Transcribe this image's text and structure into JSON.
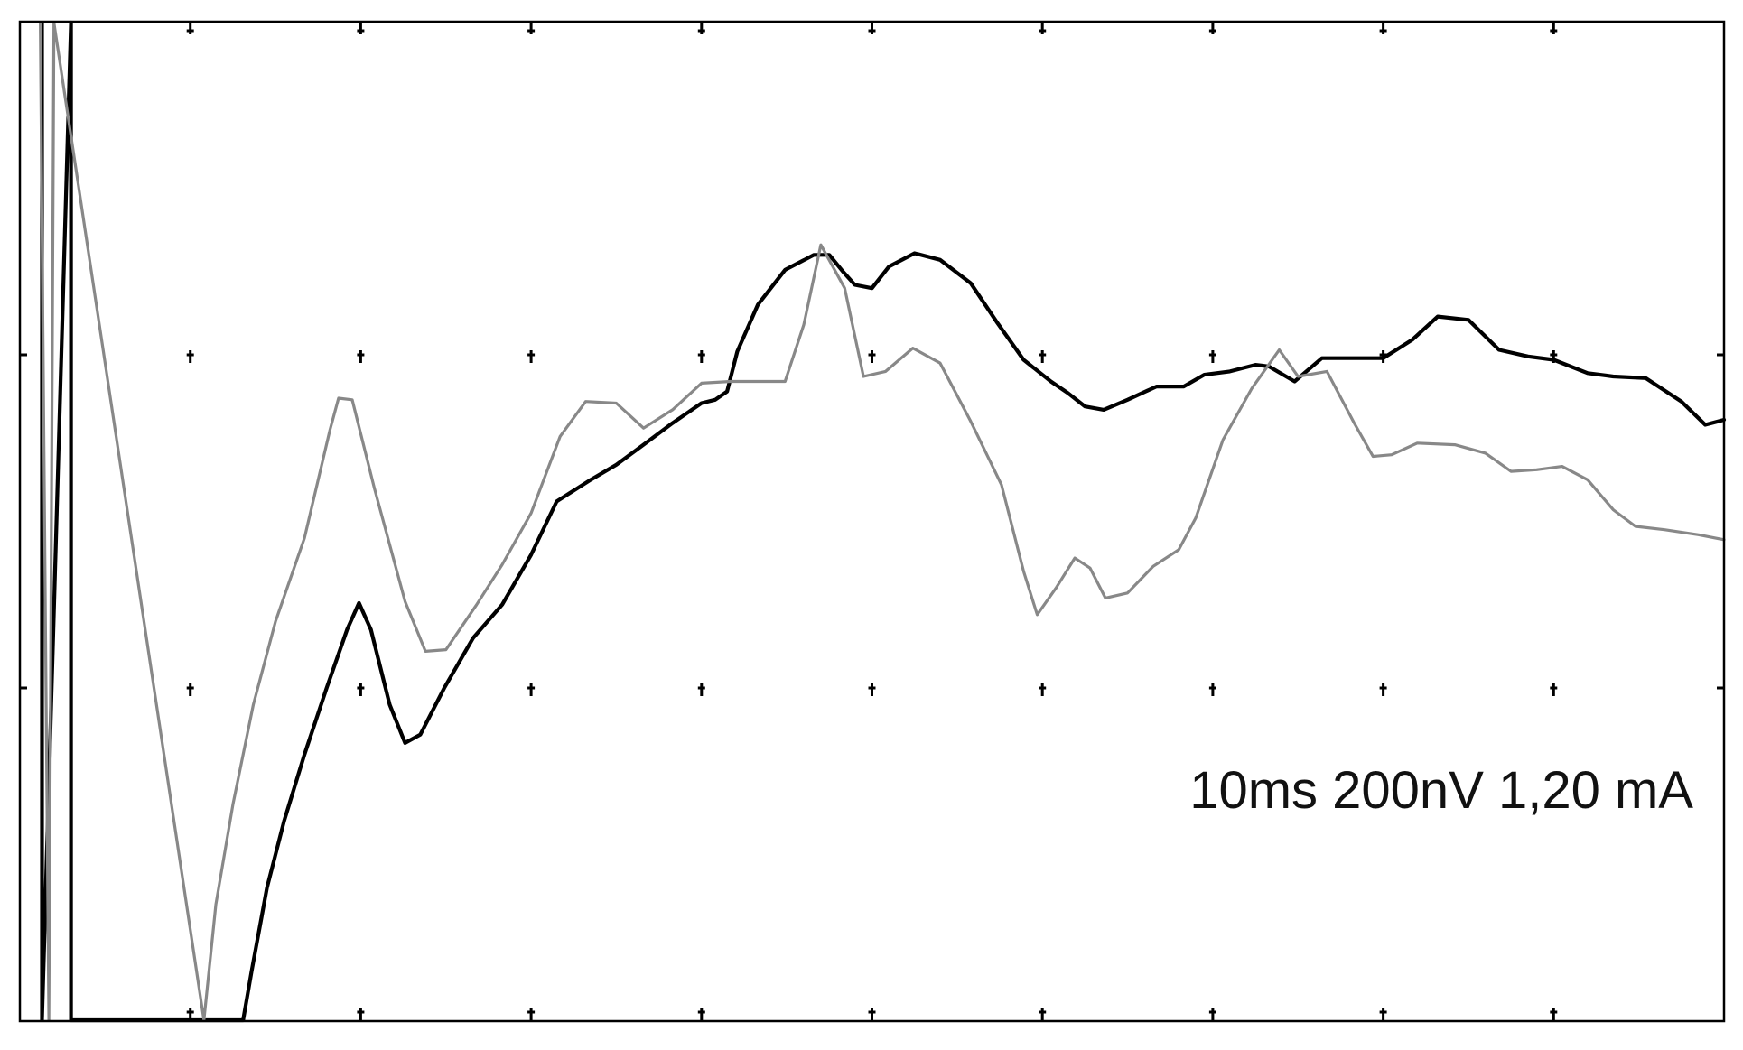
{
  "chart_data": {
    "type": "line",
    "title": "",
    "xlabel": "",
    "ylabel": "",
    "annotation": "10ms 200nV 1,20 mA",
    "grid": "dot-markers",
    "divisions": {
      "x": 10,
      "y": 3
    },
    "xlim": [
      0,
      100
    ],
    "ylim": [
      -300,
      300
    ],
    "colors": {
      "black_trace": "#000000",
      "gray_trace": "#888888",
      "frame": "#000000"
    },
    "series": [
      {
        "color": "#000000",
        "points": [
          [
            1.3,
            300
          ],
          [
            1.3,
            -300
          ],
          [
            3.0,
            300
          ],
          [
            3.0,
            -300
          ],
          [
            13.1,
            -300
          ],
          [
            13.6,
            -270
          ],
          [
            14.5,
            -220
          ],
          [
            15.5,
            -180
          ],
          [
            16.7,
            -140
          ],
          [
            18.0,
            -100
          ],
          [
            19.2,
            -65
          ],
          [
            19.9,
            -49
          ],
          [
            20.6,
            -65
          ],
          [
            21.7,
            -110
          ],
          [
            22.6,
            -133
          ],
          [
            23.5,
            -128
          ],
          [
            24.9,
            -100
          ],
          [
            26.6,
            -70
          ],
          [
            28.3,
            -50
          ],
          [
            30.0,
            -20
          ],
          [
            31.5,
            12
          ],
          [
            33.5,
            25
          ],
          [
            35.0,
            34
          ],
          [
            36.6,
            46
          ],
          [
            38.3,
            59
          ],
          [
            40.0,
            71
          ],
          [
            40.8,
            73
          ],
          [
            41.5,
            78
          ],
          [
            42.1,
            102
          ],
          [
            43.3,
            130
          ],
          [
            44.9,
            151
          ],
          [
            46.6,
            160
          ],
          [
            47.5,
            160
          ],
          [
            48.3,
            150
          ],
          [
            49.0,
            142
          ],
          [
            50.0,
            140
          ],
          [
            51.0,
            153
          ],
          [
            52.5,
            161
          ],
          [
            54.0,
            157
          ],
          [
            55.8,
            143
          ],
          [
            57.3,
            120
          ],
          [
            58.9,
            97
          ],
          [
            60.5,
            84
          ],
          [
            61.5,
            77
          ],
          [
            62.5,
            69
          ],
          [
            63.6,
            67
          ],
          [
            65.0,
            73
          ],
          [
            66.7,
            81
          ],
          [
            68.3,
            81
          ],
          [
            69.5,
            88
          ],
          [
            71.0,
            90
          ],
          [
            72.5,
            94
          ],
          [
            73.3,
            93
          ],
          [
            74.8,
            84
          ],
          [
            76.4,
            98
          ],
          [
            78.3,
            98
          ],
          [
            80.0,
            98
          ],
          [
            81.7,
            109
          ],
          [
            83.2,
            123
          ],
          [
            85.0,
            121
          ],
          [
            86.8,
            103
          ],
          [
            88.5,
            99
          ],
          [
            90.0,
            97
          ],
          [
            92.0,
            89
          ],
          [
            93.5,
            87
          ],
          [
            95.4,
            86
          ],
          [
            97.5,
            72
          ],
          [
            98.9,
            58
          ],
          [
            100.0,
            61
          ]
        ]
      },
      {
        "color": "#888888",
        "points": [
          [
            1.2,
            300
          ],
          [
            1.7,
            -300
          ],
          [
            2.0,
            300
          ],
          [
            10.8,
            -300
          ],
          [
            11.5,
            -230
          ],
          [
            12.5,
            -170
          ],
          [
            13.7,
            -110
          ],
          [
            15.0,
            -60
          ],
          [
            16.7,
            -10
          ],
          [
            18.2,
            55
          ],
          [
            18.7,
            74
          ],
          [
            19.5,
            73
          ],
          [
            20.8,
            20
          ],
          [
            22.6,
            -48
          ],
          [
            23.8,
            -78
          ],
          [
            25.0,
            -77
          ],
          [
            26.8,
            -50
          ],
          [
            28.3,
            -26
          ],
          [
            30.0,
            5
          ],
          [
            31.7,
            51
          ],
          [
            33.2,
            72
          ],
          [
            35.0,
            71
          ],
          [
            36.6,
            56
          ],
          [
            38.3,
            67
          ],
          [
            40.0,
            83
          ],
          [
            41.7,
            84
          ],
          [
            43.2,
            84
          ],
          [
            44.9,
            84
          ],
          [
            46.0,
            118
          ],
          [
            47.0,
            166
          ],
          [
            48.4,
            140
          ],
          [
            49.5,
            87
          ],
          [
            50.8,
            90
          ],
          [
            52.4,
            104
          ],
          [
            54.0,
            95
          ],
          [
            55.8,
            60
          ],
          [
            57.6,
            22
          ],
          [
            58.9,
            -30
          ],
          [
            59.7,
            -56
          ],
          [
            60.8,
            -40
          ],
          [
            61.9,
            -22
          ],
          [
            62.8,
            -28
          ],
          [
            63.7,
            -46
          ],
          [
            65.0,
            -43
          ],
          [
            66.5,
            -27
          ],
          [
            68.0,
            -17
          ],
          [
            69.0,
            2
          ],
          [
            70.6,
            49
          ],
          [
            72.3,
            80
          ],
          [
            73.9,
            103
          ],
          [
            75.0,
            87
          ],
          [
            76.7,
            90
          ],
          [
            78.3,
            59
          ],
          [
            79.4,
            39
          ],
          [
            80.5,
            40
          ],
          [
            82.0,
            47
          ],
          [
            84.2,
            46
          ],
          [
            86.0,
            41
          ],
          [
            87.5,
            30
          ],
          [
            89.0,
            31
          ],
          [
            90.5,
            33
          ],
          [
            92.0,
            25
          ],
          [
            93.5,
            7
          ],
          [
            94.8,
            -3
          ],
          [
            96.5,
            -5
          ],
          [
            98.5,
            -8
          ],
          [
            100.0,
            -11
          ]
        ]
      }
    ]
  }
}
